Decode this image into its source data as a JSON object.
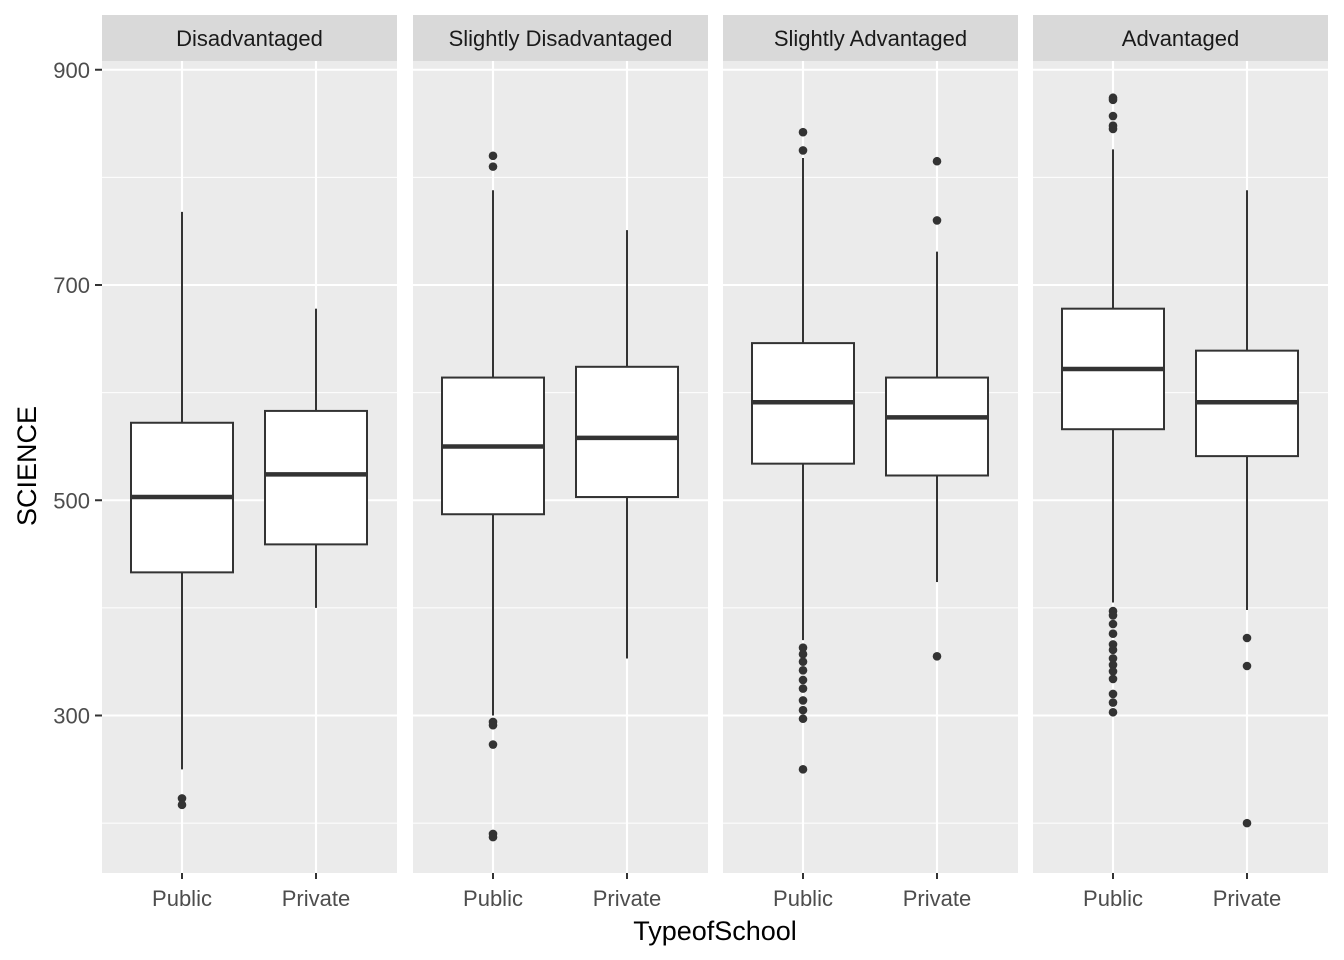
{
  "chart_data": {
    "type": "boxplot",
    "xlabel": "TypeofSchool",
    "ylabel": "SCIENCE",
    "ylim": [
      178,
      930
    ],
    "y_ticks": [
      300,
      500,
      700,
      900
    ],
    "grid": true,
    "categories": [
      "Public",
      "Private"
    ],
    "facets": [
      {
        "label": "Disadvantaged",
        "boxes": [
          {
            "category": "Public",
            "lower_whisker": 250,
            "q1": 433,
            "median": 503,
            "q3": 572,
            "upper_whisker": 768,
            "outliers": [
              223,
              217
            ]
          },
          {
            "category": "Private",
            "lower_whisker": 400,
            "q1": 459,
            "median": 524,
            "q3": 583,
            "upper_whisker": 678,
            "outliers": []
          }
        ]
      },
      {
        "label": "Slightly Disadvantaged",
        "boxes": [
          {
            "category": "Public",
            "lower_whisker": 300,
            "q1": 487,
            "median": 550,
            "q3": 614,
            "upper_whisker": 788,
            "outliers": [
              820,
              810,
              294,
              291,
              273,
              190,
              187
            ]
          },
          {
            "category": "Private",
            "lower_whisker": 353,
            "q1": 503,
            "median": 558,
            "q3": 624,
            "upper_whisker": 751,
            "outliers": []
          }
        ]
      },
      {
        "label": "Slightly Advantaged",
        "boxes": [
          {
            "category": "Public",
            "lower_whisker": 370,
            "q1": 534,
            "median": 591,
            "q3": 646,
            "upper_whisker": 818,
            "outliers": [
              842,
              825,
              363,
              357,
              350,
              342,
              333,
              325,
              314,
              305,
              297,
              250
            ]
          },
          {
            "category": "Private",
            "lower_whisker": 424,
            "q1": 523,
            "median": 577,
            "q3": 614,
            "upper_whisker": 731,
            "outliers": [
              815,
              760,
              355
            ]
          }
        ]
      },
      {
        "label": "Advantaged",
        "boxes": [
          {
            "category": "Public",
            "lower_whisker": 405,
            "q1": 566,
            "median": 622,
            "q3": 678,
            "upper_whisker": 826,
            "outliers": [
              874,
              872,
              857,
              848,
              845,
              397,
              393,
              385,
              376,
              366,
              361,
              353,
              347,
              341,
              334,
              320,
              312,
              303
            ]
          },
          {
            "category": "Private",
            "lower_whisker": 398,
            "q1": 541,
            "median": 591,
            "q3": 639,
            "upper_whisker": 788,
            "outliers": [
              372,
              346,
              200
            ]
          }
        ]
      }
    ]
  }
}
